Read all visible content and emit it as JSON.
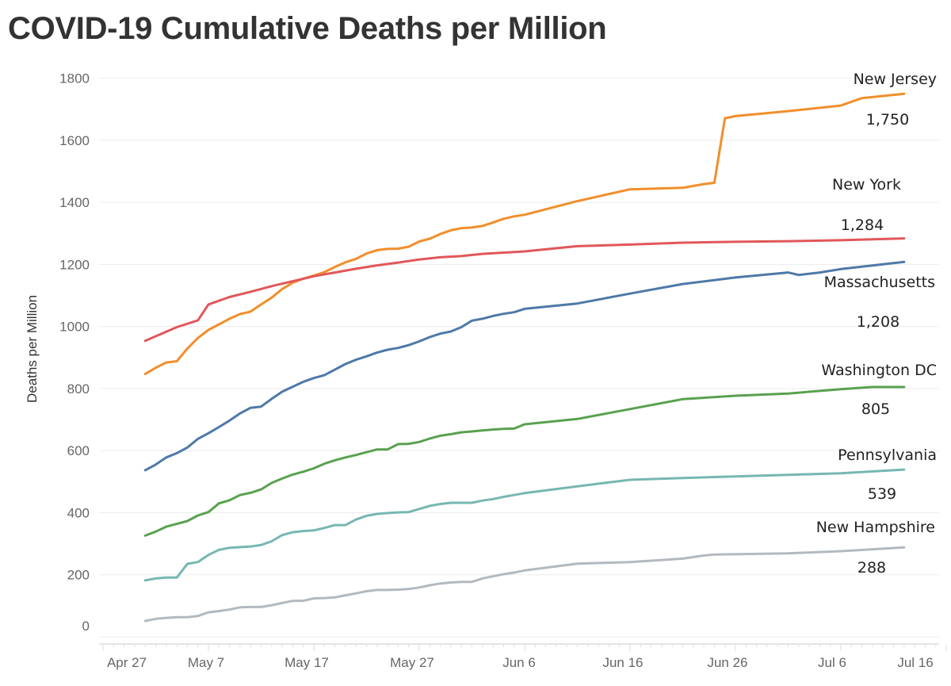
{
  "chart_data": {
    "type": "line",
    "title": "COVID-19 Cumulative Deaths per Million",
    "xlabel": "",
    "ylabel": "Deaths per Million",
    "x_unit": "days since Apr 27",
    "xlim": [
      0,
      80
    ],
    "ylim": [
      0,
      1800
    ],
    "x_ticks": [
      {
        "x": 0,
        "label": "Apr 27"
      },
      {
        "x": 10,
        "label": "May 7"
      },
      {
        "x": 20,
        "label": "May 17"
      },
      {
        "x": 30,
        "label": "May 27"
      },
      {
        "x": 40,
        "label": "Jun 6"
      },
      {
        "x": 50,
        "label": "Jun 16"
      },
      {
        "x": 60,
        "label": "Jun 26"
      },
      {
        "x": 70,
        "label": "Jul 6"
      },
      {
        "x": 80,
        "label": "Jul 16"
      }
    ],
    "y_ticks": [
      0,
      200,
      400,
      600,
      800,
      1000,
      1200,
      1400,
      1600,
      1800
    ],
    "y_tick_labels": [
      "0",
      "200",
      "400",
      "600",
      "800",
      "1000",
      "1200",
      "1400",
      "1600",
      "1800"
    ],
    "grid": true,
    "legend": "inline end-of-line labels",
    "series": [
      {
        "name": "New Jersey",
        "color": "#f28e2b",
        "end_label": "1,750",
        "points": [
          [
            4,
            847
          ],
          [
            5,
            867
          ],
          [
            6,
            884
          ],
          [
            7,
            888
          ],
          [
            8,
            929
          ],
          [
            9,
            963
          ],
          [
            10,
            989
          ],
          [
            11,
            1007
          ],
          [
            12,
            1025
          ],
          [
            13,
            1040
          ],
          [
            14,
            1048
          ],
          [
            15,
            1071
          ],
          [
            16,
            1093
          ],
          [
            17,
            1121
          ],
          [
            18,
            1141
          ],
          [
            19,
            1154
          ],
          [
            20,
            1164
          ],
          [
            21,
            1175
          ],
          [
            22,
            1192
          ],
          [
            23,
            1207
          ],
          [
            24,
            1218
          ],
          [
            25,
            1235
          ],
          [
            26,
            1246
          ],
          [
            27,
            1250
          ],
          [
            28,
            1251
          ],
          [
            29,
            1257
          ],
          [
            30,
            1274
          ],
          [
            31,
            1283
          ],
          [
            32,
            1298
          ],
          [
            33,
            1310
          ],
          [
            34,
            1317
          ],
          [
            35,
            1319
          ],
          [
            36,
            1324
          ],
          [
            37,
            1335
          ],
          [
            38,
            1347
          ],
          [
            39,
            1355
          ],
          [
            40,
            1360
          ],
          [
            45,
            1404
          ],
          [
            50,
            1442
          ],
          [
            55,
            1447
          ],
          [
            57,
            1459
          ],
          [
            58,
            1463
          ],
          [
            59,
            1671
          ],
          [
            60,
            1678
          ],
          [
            65,
            1694
          ],
          [
            70,
            1712
          ],
          [
            72,
            1736
          ],
          [
            76,
            1750
          ]
        ]
      },
      {
        "name": "New York",
        "color": "#e15759",
        "end_label": "1,284",
        "points": [
          [
            4,
            954
          ],
          [
            7,
            998
          ],
          [
            9,
            1020
          ],
          [
            10,
            1071
          ],
          [
            12,
            1095
          ],
          [
            14,
            1112
          ],
          [
            16,
            1130
          ],
          [
            18,
            1146
          ],
          [
            20,
            1162
          ],
          [
            22,
            1174
          ],
          [
            24,
            1186
          ],
          [
            26,
            1197
          ],
          [
            28,
            1206
          ],
          [
            30,
            1216
          ],
          [
            32,
            1223
          ],
          [
            34,
            1227
          ],
          [
            36,
            1234
          ],
          [
            40,
            1242
          ],
          [
            45,
            1259
          ],
          [
            50,
            1264
          ],
          [
            55,
            1270
          ],
          [
            60,
            1273
          ],
          [
            65,
            1275
          ],
          [
            70,
            1278
          ],
          [
            76,
            1284
          ]
        ]
      },
      {
        "name": "Massachusetts",
        "color": "#4e79a7",
        "end_label": "1,208",
        "points": [
          [
            4,
            537
          ],
          [
            5,
            555
          ],
          [
            6,
            578
          ],
          [
            7,
            592
          ],
          [
            8,
            610
          ],
          [
            9,
            638
          ],
          [
            10,
            656
          ],
          [
            11,
            676
          ],
          [
            12,
            697
          ],
          [
            13,
            720
          ],
          [
            14,
            738
          ],
          [
            15,
            742
          ],
          [
            16,
            767
          ],
          [
            17,
            790
          ],
          [
            18,
            806
          ],
          [
            19,
            822
          ],
          [
            20,
            834
          ],
          [
            21,
            843
          ],
          [
            22,
            861
          ],
          [
            23,
            879
          ],
          [
            24,
            893
          ],
          [
            25,
            904
          ],
          [
            26,
            916
          ],
          [
            27,
            925
          ],
          [
            28,
            931
          ],
          [
            29,
            940
          ],
          [
            30,
            952
          ],
          [
            31,
            966
          ],
          [
            32,
            977
          ],
          [
            33,
            984
          ],
          [
            34,
            998
          ],
          [
            35,
            1019
          ],
          [
            36,
            1025
          ],
          [
            37,
            1034
          ],
          [
            38,
            1041
          ],
          [
            39,
            1046
          ],
          [
            40,
            1057
          ],
          [
            45,
            1074
          ],
          [
            50,
            1106
          ],
          [
            55,
            1137
          ],
          [
            60,
            1158
          ],
          [
            65,
            1174
          ],
          [
            66,
            1166
          ],
          [
            68,
            1174
          ],
          [
            70,
            1185
          ],
          [
            76,
            1208
          ]
        ]
      },
      {
        "name": "Washington DC",
        "color": "#59a14f",
        "end_label": "805",
        "points": [
          [
            4,
            326
          ],
          [
            5,
            339
          ],
          [
            6,
            355
          ],
          [
            7,
            364
          ],
          [
            8,
            373
          ],
          [
            9,
            391
          ],
          [
            10,
            402
          ],
          [
            11,
            430
          ],
          [
            12,
            440
          ],
          [
            13,
            457
          ],
          [
            14,
            464
          ],
          [
            15,
            475
          ],
          [
            16,
            496
          ],
          [
            17,
            510
          ],
          [
            18,
            523
          ],
          [
            19,
            532
          ],
          [
            20,
            543
          ],
          [
            21,
            558
          ],
          [
            22,
            569
          ],
          [
            23,
            578
          ],
          [
            24,
            586
          ],
          [
            25,
            595
          ],
          [
            26,
            604
          ],
          [
            27,
            604
          ],
          [
            28,
            621
          ],
          [
            29,
            622
          ],
          [
            30,
            628
          ],
          [
            31,
            639
          ],
          [
            32,
            648
          ],
          [
            33,
            653
          ],
          [
            34,
            659
          ],
          [
            35,
            662
          ],
          [
            36,
            665
          ],
          [
            37,
            668
          ],
          [
            38,
            670
          ],
          [
            39,
            671
          ],
          [
            40,
            685
          ],
          [
            45,
            702
          ],
          [
            50,
            734
          ],
          [
            55,
            766
          ],
          [
            60,
            777
          ],
          [
            65,
            784
          ],
          [
            70,
            798
          ],
          [
            73,
            805
          ],
          [
            76,
            805
          ]
        ]
      },
      {
        "name": "Pennsylvania",
        "color": "#76b7b2",
        "end_label": "539",
        "points": [
          [
            4,
            182
          ],
          [
            5,
            188
          ],
          [
            6,
            191
          ],
          [
            7,
            191
          ],
          [
            8,
            235
          ],
          [
            9,
            241
          ],
          [
            10,
            264
          ],
          [
            11,
            280
          ],
          [
            12,
            287
          ],
          [
            13,
            289
          ],
          [
            14,
            291
          ],
          [
            15,
            296
          ],
          [
            16,
            308
          ],
          [
            17,
            328
          ],
          [
            18,
            337
          ],
          [
            19,
            341
          ],
          [
            20,
            343
          ],
          [
            21,
            351
          ],
          [
            22,
            360
          ],
          [
            23,
            360
          ],
          [
            24,
            378
          ],
          [
            25,
            390
          ],
          [
            26,
            396
          ],
          [
            27,
            399
          ],
          [
            28,
            401
          ],
          [
            29,
            402
          ],
          [
            30,
            412
          ],
          [
            31,
            422
          ],
          [
            32,
            428
          ],
          [
            33,
            432
          ],
          [
            34,
            432
          ],
          [
            35,
            432
          ],
          [
            36,
            439
          ],
          [
            37,
            444
          ],
          [
            38,
            451
          ],
          [
            39,
            457
          ],
          [
            40,
            463
          ],
          [
            45,
            485
          ],
          [
            50,
            506
          ],
          [
            55,
            512
          ],
          [
            60,
            517
          ],
          [
            65,
            522
          ],
          [
            70,
            527
          ],
          [
            76,
            539
          ]
        ]
      },
      {
        "name": "New Hampshire",
        "color": "#b3b9c0",
        "end_label": "288",
        "points": [
          [
            4,
            51
          ],
          [
            5,
            58
          ],
          [
            6,
            61
          ],
          [
            7,
            63
          ],
          [
            8,
            63
          ],
          [
            9,
            67
          ],
          [
            10,
            79
          ],
          [
            11,
            83
          ],
          [
            12,
            88
          ],
          [
            13,
            95
          ],
          [
            14,
            96
          ],
          [
            15,
            96
          ],
          [
            16,
            102
          ],
          [
            17,
            109
          ],
          [
            18,
            116
          ],
          [
            19,
            116
          ],
          [
            20,
            124
          ],
          [
            21,
            125
          ],
          [
            22,
            127
          ],
          [
            23,
            134
          ],
          [
            24,
            140
          ],
          [
            25,
            147
          ],
          [
            26,
            151
          ],
          [
            27,
            151
          ],
          [
            28,
            152
          ],
          [
            29,
            154
          ],
          [
            30,
            159
          ],
          [
            31,
            166
          ],
          [
            32,
            172
          ],
          [
            33,
            175
          ],
          [
            34,
            177
          ],
          [
            35,
            177
          ],
          [
            36,
            188
          ],
          [
            37,
            195
          ],
          [
            38,
            202
          ],
          [
            39,
            207
          ],
          [
            40,
            214
          ],
          [
            45,
            236
          ],
          [
            50,
            241
          ],
          [
            55,
            252
          ],
          [
            57,
            262
          ],
          [
            58,
            265
          ],
          [
            65,
            269
          ],
          [
            70,
            276
          ],
          [
            76,
            288
          ]
        ]
      }
    ]
  }
}
